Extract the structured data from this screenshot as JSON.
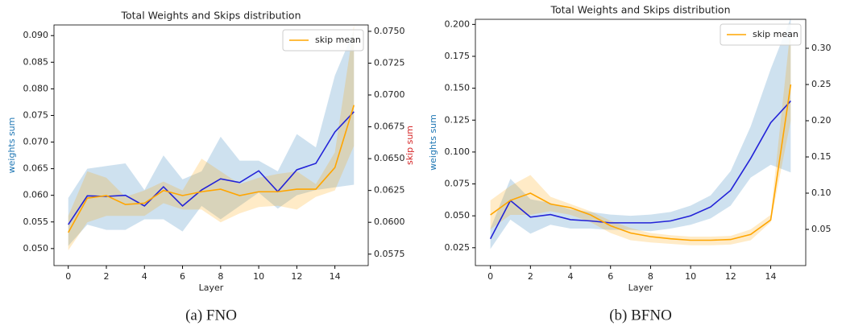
{
  "chart_data": [
    {
      "type": "line",
      "title": "Total Weights and Skips distribution",
      "caption": "(a) FNO",
      "xlabel": "Layer",
      "ylabel": "weights sum",
      "y2label": "skip sum",
      "ylabel_color": "#1f77b4",
      "y2label_color": "#d62728",
      "legend": "upper right",
      "x": [
        0,
        1,
        2,
        3,
        4,
        5,
        6,
        7,
        8,
        9,
        10,
        11,
        12,
        13,
        14,
        15
      ],
      "xlim": [
        -0.75,
        15.75
      ],
      "xticks": [
        0,
        2,
        4,
        6,
        8,
        10,
        12,
        14
      ],
      "ylim": [
        0.0468,
        0.092
      ],
      "yticks": [
        {
          "value": 0.05,
          "label": "0.050"
        },
        {
          "value": 0.055,
          "label": "0.055"
        },
        {
          "value": 0.06,
          "label": "0.060"
        },
        {
          "value": 0.065,
          "label": "0.065"
        },
        {
          "value": 0.07,
          "label": "0.070"
        },
        {
          "value": 0.075,
          "label": "0.075"
        },
        {
          "value": 0.08,
          "label": "0.080"
        },
        {
          "value": 0.085,
          "label": "0.085"
        },
        {
          "value": 0.09,
          "label": "0.090"
        }
      ],
      "y2lim": [
        0.0566,
        0.0755
      ],
      "y2ticks": [
        0.0575,
        {
          "value": 0.06,
          "label": "0.0600"
        },
        0.0625,
        {
          "value": 0.065,
          "label": "0.0650"
        },
        0.0675,
        {
          "value": 0.07,
          "label": "0.0700"
        },
        0.0725,
        {
          "value": 0.075,
          "label": "0.0750"
        }
      ],
      "series": [
        {
          "color": "#2323d8",
          "band_color": "#1f77b4",
          "values": [
            0.0545,
            0.0599,
            0.0598,
            0.06,
            0.058,
            0.0616,
            0.058,
            0.061,
            0.0631,
            0.0624,
            0.0646,
            0.0607,
            0.0648,
            0.066,
            0.0719,
            0.0757
          ],
          "band_lower": [
            0.0505,
            0.0545,
            0.0535,
            0.0535,
            0.0555,
            0.0555,
            0.0532,
            0.058,
            0.0555,
            0.058,
            0.0605,
            0.0575,
            0.06,
            0.061,
            0.0615,
            0.062
          ],
          "band_upper": [
            0.0595,
            0.065,
            0.0655,
            0.066,
            0.061,
            0.0675,
            0.063,
            0.0645,
            0.071,
            0.0665,
            0.0665,
            0.0645,
            0.0715,
            0.069,
            0.0825,
            0.091
          ]
        },
        {
          "name": "skip mean",
          "axis": "y2",
          "color": "#ffa500",
          "band_color": "#ffa500",
          "values": [
            0.0592,
            0.0619,
            0.0621,
            0.0614,
            0.0615,
            0.0625,
            0.0621,
            0.0624,
            0.0626,
            0.0621,
            0.0624,
            0.0624,
            0.0626,
            0.0626,
            0.0643,
            0.0692
          ],
          "band_lower": [
            0.0578,
            0.06,
            0.0605,
            0.0605,
            0.0605,
            0.0615,
            0.061,
            0.061,
            0.06,
            0.0607,
            0.0612,
            0.0613,
            0.061,
            0.062,
            0.0625,
            0.066
          ],
          "band_upper": [
            0.0605,
            0.064,
            0.0635,
            0.062,
            0.0625,
            0.0632,
            0.0625,
            0.065,
            0.064,
            0.063,
            0.0635,
            0.0638,
            0.064,
            0.063,
            0.0655,
            0.0755
          ]
        }
      ]
    },
    {
      "type": "line",
      "title": "Total Weights and Skips distribution",
      "caption": "(b) BFNO",
      "xlabel": "Layer",
      "ylabel": "weights sum",
      "y2label": "skip sum",
      "ylabel_color": "#1f77b4",
      "y2label_color": "#d62728",
      "legend": "upper right",
      "x": [
        0,
        1,
        2,
        3,
        4,
        5,
        6,
        7,
        8,
        9,
        10,
        11,
        12,
        13,
        14,
        15
      ],
      "xlim": [
        -0.75,
        15.75
      ],
      "xticks": [
        0,
        2,
        4,
        6,
        8,
        10,
        12,
        14
      ],
      "ylim": [
        0.011,
        0.204
      ],
      "yticks": [
        0.025,
        {
          "value": 0.05,
          "label": "0.050"
        },
        0.075,
        {
          "value": 0.1,
          "label": "0.100"
        },
        0.125,
        {
          "value": 0.15,
          "label": "0.150"
        },
        0.175,
        {
          "value": 0.2,
          "label": "0.200"
        }
      ],
      "y2lim": [
        0.0,
        0.34
      ],
      "y2ticks": [
        0.05,
        {
          "value": 0.1,
          "label": "0.10"
        },
        0.15,
        {
          "value": 0.2,
          "label": "0.20"
        },
        0.25,
        {
          "value": 0.3,
          "label": "0.30"
        }
      ],
      "series": [
        {
          "color": "#2323d8",
          "band_color": "#1f77b4",
          "values": [
            0.032,
            0.062,
            0.049,
            0.051,
            0.047,
            0.046,
            0.0445,
            0.0445,
            0.0445,
            0.046,
            0.05,
            0.057,
            0.07,
            0.095,
            0.123,
            0.14
          ],
          "band_lower": [
            0.024,
            0.047,
            0.036,
            0.043,
            0.04,
            0.04,
            0.039,
            0.039,
            0.038,
            0.04,
            0.043,
            0.048,
            0.058,
            0.08,
            0.09,
            0.084
          ],
          "band_upper": [
            0.04,
            0.079,
            0.063,
            0.06,
            0.055,
            0.053,
            0.051,
            0.05,
            0.051,
            0.053,
            0.058,
            0.066,
            0.085,
            0.12,
            0.165,
            0.205
          ]
        },
        {
          "name": "skip mean",
          "axis": "y2",
          "color": "#ffa500",
          "band_color": "#ffa500",
          "values": [
            0.07,
            0.09,
            0.1,
            0.085,
            0.08,
            0.07,
            0.055,
            0.045,
            0.04,
            0.037,
            0.035,
            0.035,
            0.036,
            0.043,
            0.063,
            0.25
          ],
          "band_lower": [
            0.05,
            0.07,
            0.07,
            0.075,
            0.07,
            0.06,
            0.045,
            0.035,
            0.032,
            0.03,
            0.028,
            0.028,
            0.029,
            0.035,
            0.06,
            0.2
          ],
          "band_upper": [
            0.09,
            0.11,
            0.125,
            0.095,
            0.085,
            0.075,
            0.062,
            0.052,
            0.045,
            0.042,
            0.04,
            0.04,
            0.041,
            0.05,
            0.07,
            0.33
          ]
        }
      ]
    }
  ]
}
